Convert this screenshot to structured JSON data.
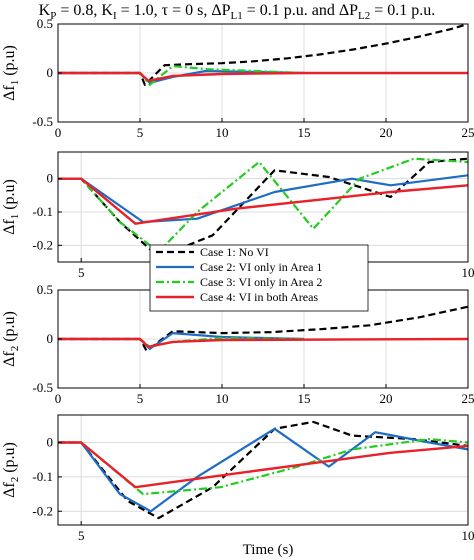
{
  "chart_data": [
    {
      "type": "line",
      "panel": "a",
      "title": "K_P = 0.8, K_I = 1.0, τ = 0 s, ΔP_L1 = 0.1 p.u. and ΔP_L2 = 0.1 p.u.",
      "xlim": [
        0,
        25
      ],
      "ylim": [
        -0.5,
        0.5
      ],
      "xticks": [
        "0",
        "5",
        "10",
        "15",
        "20",
        "25"
      ],
      "yticks": [
        "-0.5",
        "0",
        "0.5"
      ],
      "ylabel": {
        "prefix": "Δf",
        "sub": "1",
        "suffix": " (p.u)"
      },
      "grid": true,
      "series": [
        {
          "name": "Case 1: No VI",
          "x": [
            0,
            5.0,
            5.3,
            6.5,
            8,
            10,
            12,
            14,
            16,
            18,
            20,
            22,
            24,
            25
          ],
          "y": [
            0,
            0,
            -0.12,
            0.08,
            0.09,
            0.1,
            0.12,
            0.15,
            0.19,
            0.24,
            0.3,
            0.37,
            0.45,
            0.5
          ]
        },
        {
          "name": "Case 2: VI only in Area 1",
          "x": [
            0,
            5.0,
            5.6,
            7,
            9,
            12,
            15
          ],
          "y": [
            0,
            0,
            -0.1,
            -0.04,
            0.02,
            0.01,
            0.0
          ]
        },
        {
          "name": "Case 3: VI only in Area 2",
          "x": [
            0,
            5.0,
            5.6,
            7,
            9,
            12,
            15
          ],
          "y": [
            0,
            0,
            -0.12,
            0.07,
            0.04,
            0.02,
            0.0
          ]
        },
        {
          "name": "Case 4: VI in both Areas",
          "x": [
            0,
            5.0,
            5.5,
            7,
            10,
            15,
            25
          ],
          "y": [
            0,
            0,
            -0.08,
            -0.03,
            -0.01,
            0.0,
            0.0
          ]
        }
      ]
    },
    {
      "type": "line",
      "panel": "b",
      "xlim": [
        4.7,
        10
      ],
      "ylim": [
        -0.25,
        0.08
      ],
      "xticks": [
        "5",
        "10"
      ],
      "yticks": [
        "-0.2",
        "-0.1",
        "0"
      ],
      "ylabel": {
        "prefix": "Δf",
        "sub": "1",
        "suffix": " (p.u)"
      },
      "grid": true,
      "series": [
        {
          "name": "Case 1: No VI",
          "x": [
            4.7,
            5.0,
            5.5,
            6.0,
            6.7,
            7.5,
            8.2,
            9.0,
            9.5,
            10
          ],
          "y": [
            0,
            0,
            -0.13,
            -0.235,
            -0.17,
            0.025,
            0.005,
            -0.055,
            0.05,
            0.06
          ]
        },
        {
          "name": "Case 2: VI only in Area 1",
          "x": [
            4.7,
            5.0,
            5.8,
            6.5,
            7.5,
            8.5,
            9.0,
            10
          ],
          "y": [
            0,
            0,
            -0.13,
            -0.12,
            -0.04,
            0.0,
            -0.02,
            0.01
          ]
        },
        {
          "name": "Case 3: VI only in Area 2",
          "x": [
            4.7,
            5.0,
            5.5,
            6.0,
            6.5,
            7.3,
            8.0,
            8.6,
            9.3,
            10
          ],
          "y": [
            0,
            0,
            -0.13,
            -0.22,
            -0.1,
            0.05,
            -0.15,
            0.0,
            0.06,
            0.05
          ]
        },
        {
          "name": "Case 4: VI in both Areas",
          "x": [
            4.7,
            5.0,
            5.7,
            7,
            9,
            10
          ],
          "y": [
            0,
            0,
            -0.135,
            -0.09,
            -0.04,
            -0.02
          ]
        }
      ]
    },
    {
      "type": "line",
      "panel": "c",
      "xlim": [
        0,
        25
      ],
      "ylim": [
        -0.5,
        0.5
      ],
      "xticks": [
        "0",
        "5",
        "10",
        "15",
        "20",
        "25"
      ],
      "yticks": [
        "-0.5",
        "0",
        "0.5"
      ],
      "ylabel": {
        "prefix": "Δf",
        "sub": "2",
        "suffix": " (p.u)"
      },
      "grid": true,
      "series": [
        {
          "name": "Case 1: No VI",
          "x": [
            0,
            5.0,
            5.4,
            7,
            10,
            13,
            16,
            19,
            22,
            25
          ],
          "y": [
            0,
            0,
            -0.12,
            0.08,
            0.06,
            0.07,
            0.1,
            0.14,
            0.22,
            0.33
          ]
        },
        {
          "name": "Case 2: VI only in Area 1",
          "x": [
            0,
            5.0,
            5.6,
            7,
            10,
            15
          ],
          "y": [
            0,
            0,
            -0.1,
            0.06,
            0.02,
            0.0
          ]
        },
        {
          "name": "Case 3: VI only in Area 2",
          "x": [
            0,
            5.0,
            5.6,
            7,
            10,
            15
          ],
          "y": [
            0,
            0,
            -0.08,
            -0.03,
            0.01,
            0.0
          ]
        },
        {
          "name": "Case 4: VI in both Areas",
          "x": [
            0,
            5.0,
            5.5,
            7,
            10,
            25
          ],
          "y": [
            0,
            0,
            -0.08,
            -0.03,
            -0.01,
            0.0
          ]
        }
      ]
    },
    {
      "type": "line",
      "panel": "d",
      "xlim": [
        4.7,
        10
      ],
      "ylim": [
        -0.24,
        0.08
      ],
      "xticks": [
        "5",
        "10"
      ],
      "yticks": [
        "-0.2",
        "-0.1",
        "0"
      ],
      "ylabel": {
        "prefix": "Δf",
        "sub": "2",
        "suffix": " (p.u)"
      },
      "grid": true,
      "series": [
        {
          "name": "Case 1: No VI",
          "x": [
            4.7,
            5.0,
            5.6,
            6.0,
            6.7,
            7.5,
            8.0,
            8.5,
            9.3,
            10
          ],
          "y": [
            0,
            0,
            -0.17,
            -0.22,
            -0.13,
            0.04,
            0.06,
            0.02,
            0.01,
            -0.01
          ]
        },
        {
          "name": "Case 2: VI only in Area 1",
          "x": [
            4.7,
            5.0,
            5.5,
            5.9,
            6.5,
            7.5,
            8.2,
            8.8,
            9.5,
            10
          ],
          "y": [
            0,
            0,
            -0.15,
            -0.2,
            -0.1,
            0.04,
            -0.07,
            0.03,
            0.0,
            -0.02
          ]
        },
        {
          "name": "Case 3: VI only in Area 2",
          "x": [
            4.7,
            5.0,
            5.8,
            6.8,
            7.8,
            8.5,
            9.5,
            10
          ],
          "y": [
            0,
            0,
            -0.15,
            -0.13,
            -0.07,
            -0.02,
            0.01,
            0.0
          ]
        },
        {
          "name": "Case 4: VI in both Areas",
          "x": [
            4.7,
            5.0,
            5.7,
            7,
            9,
            10
          ],
          "y": [
            0,
            0,
            -0.13,
            -0.09,
            -0.03,
            -0.01
          ]
        }
      ]
    }
  ],
  "style": {
    "colors": [
      "#000000",
      "#1f6cc4",
      "#22cc22",
      "#e8212b"
    ],
    "dash": [
      "7,4",
      "",
      "8,3,2,3",
      ""
    ],
    "widths": [
      2.2,
      2.2,
      2.2,
      2.4
    ]
  },
  "legend": {
    "placement": "overlapping panels b and c",
    "entries": [
      "Case 1: No VI",
      "Case 2: VI only in Area 1",
      "Case 3: VI only in Area 2",
      "Case 4: VI in both Areas"
    ]
  },
  "xlabel": "Time (s)"
}
